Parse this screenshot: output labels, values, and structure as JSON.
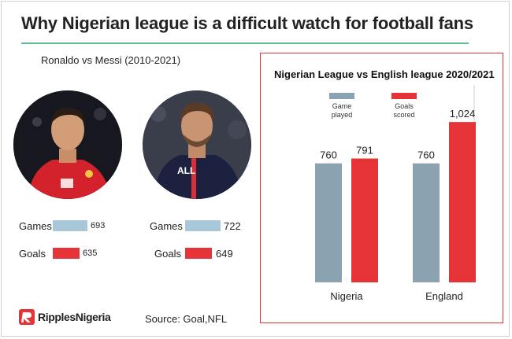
{
  "title": "Why Nigerian league is a difficult watch for football fans",
  "left": {
    "subtitle": "Ronaldo vs Messi (2010-2021)",
    "players": [
      {
        "photo": "ronaldo-photo",
        "games_label": "Games",
        "games": 693,
        "goals_label": "Goals",
        "goals": 635
      },
      {
        "photo": "messi-photo",
        "games_label": "Games",
        "games": 722,
        "goals_label": "Goals",
        "goals": 649
      }
    ]
  },
  "logo": {
    "text": "RipplesNigeria",
    "icon": "ripples-logo-icon"
  },
  "source": "Source: Goal,NFL",
  "colors": {
    "games": "#8ba2b0",
    "goals": "#e63338",
    "games_light": "#a8c7d8",
    "title_rule": "#5bbf8f"
  },
  "chart_data": {
    "type": "bar",
    "title": "Nigerian League vs English league 2020/2021",
    "categories": [
      "Nigeria",
      "England"
    ],
    "series": [
      {
        "name": "Game played",
        "values": [
          760,
          760
        ]
      },
      {
        "name": "Goals scored",
        "values": [
          791,
          1024
        ]
      }
    ],
    "data_labels": [
      [
        "760",
        "791"
      ],
      [
        "760",
        "1,024"
      ]
    ],
    "ylim": [
      0,
      1100
    ],
    "xlabel": "",
    "ylabel": "",
    "grid": false,
    "legend_position": "top"
  }
}
